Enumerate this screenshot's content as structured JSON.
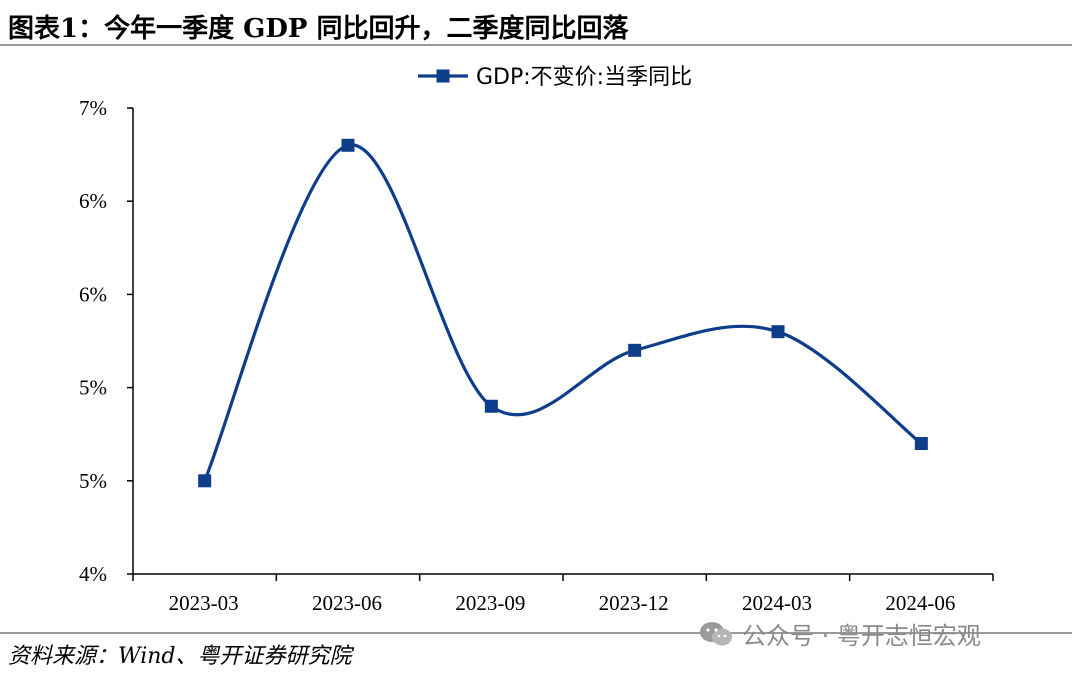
{
  "header": {
    "title": "图表1：今年一季度 GDP 同比回升，二季度同比回落"
  },
  "footer": {
    "source": "资料来源：Wind、粤开证券研究院"
  },
  "watermark": {
    "text": "公众号 · 粤开志恒宏观",
    "icon": "wechat-icon"
  },
  "colors": {
    "series": "#0e3d8a",
    "axis": "#000000",
    "rule": "#9a9a9a"
  },
  "chart_data": {
    "type": "line",
    "title": "",
    "xlabel": "",
    "ylabel": "",
    "categories": [
      "2023-03",
      "2023-06",
      "2023-09",
      "2023-12",
      "2024-03",
      "2024-06"
    ],
    "series": [
      {
        "name": "GDP:不变价:当季同比",
        "values": [
          4.5,
          6.3,
          4.9,
          5.2,
          5.3,
          4.7
        ],
        "marker": "square",
        "smooth": true
      }
    ],
    "ylim": [
      4.0,
      6.5
    ],
    "yticks": [
      4.0,
      4.5,
      5.0,
      5.5,
      6.0,
      6.5
    ],
    "ytick_labels": [
      "4%",
      "5%",
      "5%",
      "6%",
      "6%",
      "7%"
    ],
    "grid": false,
    "legend": "top-center"
  }
}
